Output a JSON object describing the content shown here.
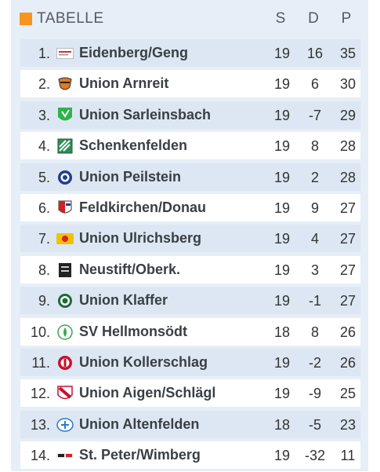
{
  "table": {
    "title": "TABELLE",
    "col_s": "S",
    "col_d": "D",
    "col_p": "P",
    "accent": "#f7941d",
    "rows": [
      {
        "rank": "1.",
        "team": "Eidenberg/Geng",
        "s": "19",
        "d": "16",
        "p": "35",
        "icon": "eidenberg-crest"
      },
      {
        "rank": "2.",
        "team": "Union Arnreit",
        "s": "19",
        "d": "6",
        "p": "30",
        "icon": "arnreit-crest"
      },
      {
        "rank": "3.",
        "team": "Union Sarleinsbach",
        "s": "19",
        "d": "-7",
        "p": "29",
        "icon": "sarleinsbach-crest"
      },
      {
        "rank": "4.",
        "team": "Schenkenfelden",
        "s": "19",
        "d": "8",
        "p": "28",
        "icon": "schenkenfelden-crest"
      },
      {
        "rank": "5.",
        "team": "Union Peilstein",
        "s": "19",
        "d": "2",
        "p": "28",
        "icon": "peilstein-crest"
      },
      {
        "rank": "6.",
        "team": "Feldkirchen/Donau",
        "s": "19",
        "d": "9",
        "p": "27",
        "icon": "feldkirchen-crest"
      },
      {
        "rank": "7.",
        "team": "Union Ulrichsberg",
        "s": "19",
        "d": "4",
        "p": "27",
        "icon": "ulrichsberg-crest"
      },
      {
        "rank": "8.",
        "team": "Neustift/Oberk.",
        "s": "19",
        "d": "3",
        "p": "27",
        "icon": "neustift-crest"
      },
      {
        "rank": "9.",
        "team": "Union Klaffer",
        "s": "19",
        "d": "-1",
        "p": "27",
        "icon": "klaffer-crest"
      },
      {
        "rank": "10.",
        "team": "SV Hellmonsödt",
        "s": "18",
        "d": "8",
        "p": "26",
        "icon": "hellmonsoedt-crest"
      },
      {
        "rank": "11.",
        "team": "Union Kollerschlag",
        "s": "19",
        "d": "-2",
        "p": "26",
        "icon": "kollerschlag-crest"
      },
      {
        "rank": "12.",
        "team": "Union Aigen/Schlägl",
        "s": "19",
        "d": "-9",
        "p": "25",
        "icon": "aigen-crest"
      },
      {
        "rank": "13.",
        "team": "Union Altenfelden",
        "s": "18",
        "d": "-5",
        "p": "23",
        "icon": "altenfelden-crest"
      },
      {
        "rank": "14.",
        "team": "St. Peter/Wimberg",
        "s": "19",
        "d": "-32",
        "p": "11",
        "icon": "st-peter-crest"
      }
    ]
  }
}
